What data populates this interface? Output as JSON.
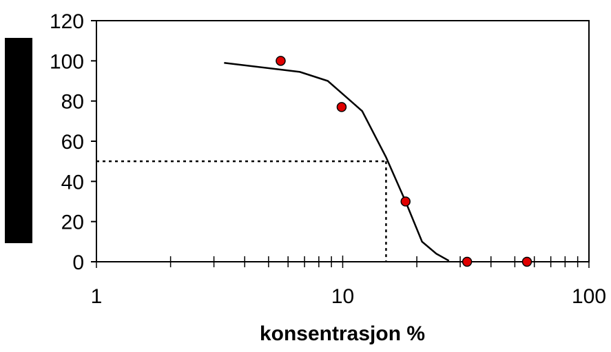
{
  "chart_data": {
    "type": "scatter",
    "title": "",
    "xlabel": "konsentrasjon %",
    "ylabel": "",
    "x_scale": "log",
    "xlim": [
      1,
      100
    ],
    "ylim": [
      0,
      120
    ],
    "x_ticks": [
      "1",
      "10",
      "100"
    ],
    "y_ticks": [
      "0",
      "20",
      "40",
      "60",
      "80",
      "100",
      "120"
    ],
    "grid": false,
    "legend": "none",
    "series": [
      {
        "kind": "points",
        "color": "#e00000",
        "x": [
          5.6,
          9.9,
          18.0,
          32.0,
          56.0
        ],
        "y": [
          100,
          77,
          30,
          0,
          0
        ]
      },
      {
        "kind": "fitted-curve",
        "color": "#000000",
        "x": [
          3.3,
          6.7,
          8.7,
          12.0,
          15.0,
          18.0,
          21.0,
          24.0,
          27.0
        ],
        "y": [
          99,
          94.5,
          90,
          75,
          52,
          30,
          10,
          4,
          0.5
        ]
      }
    ],
    "reference_lines": {
      "style": "dotted",
      "x": 15,
      "y": 50
    },
    "ylabel_area_color": "#000000"
  }
}
